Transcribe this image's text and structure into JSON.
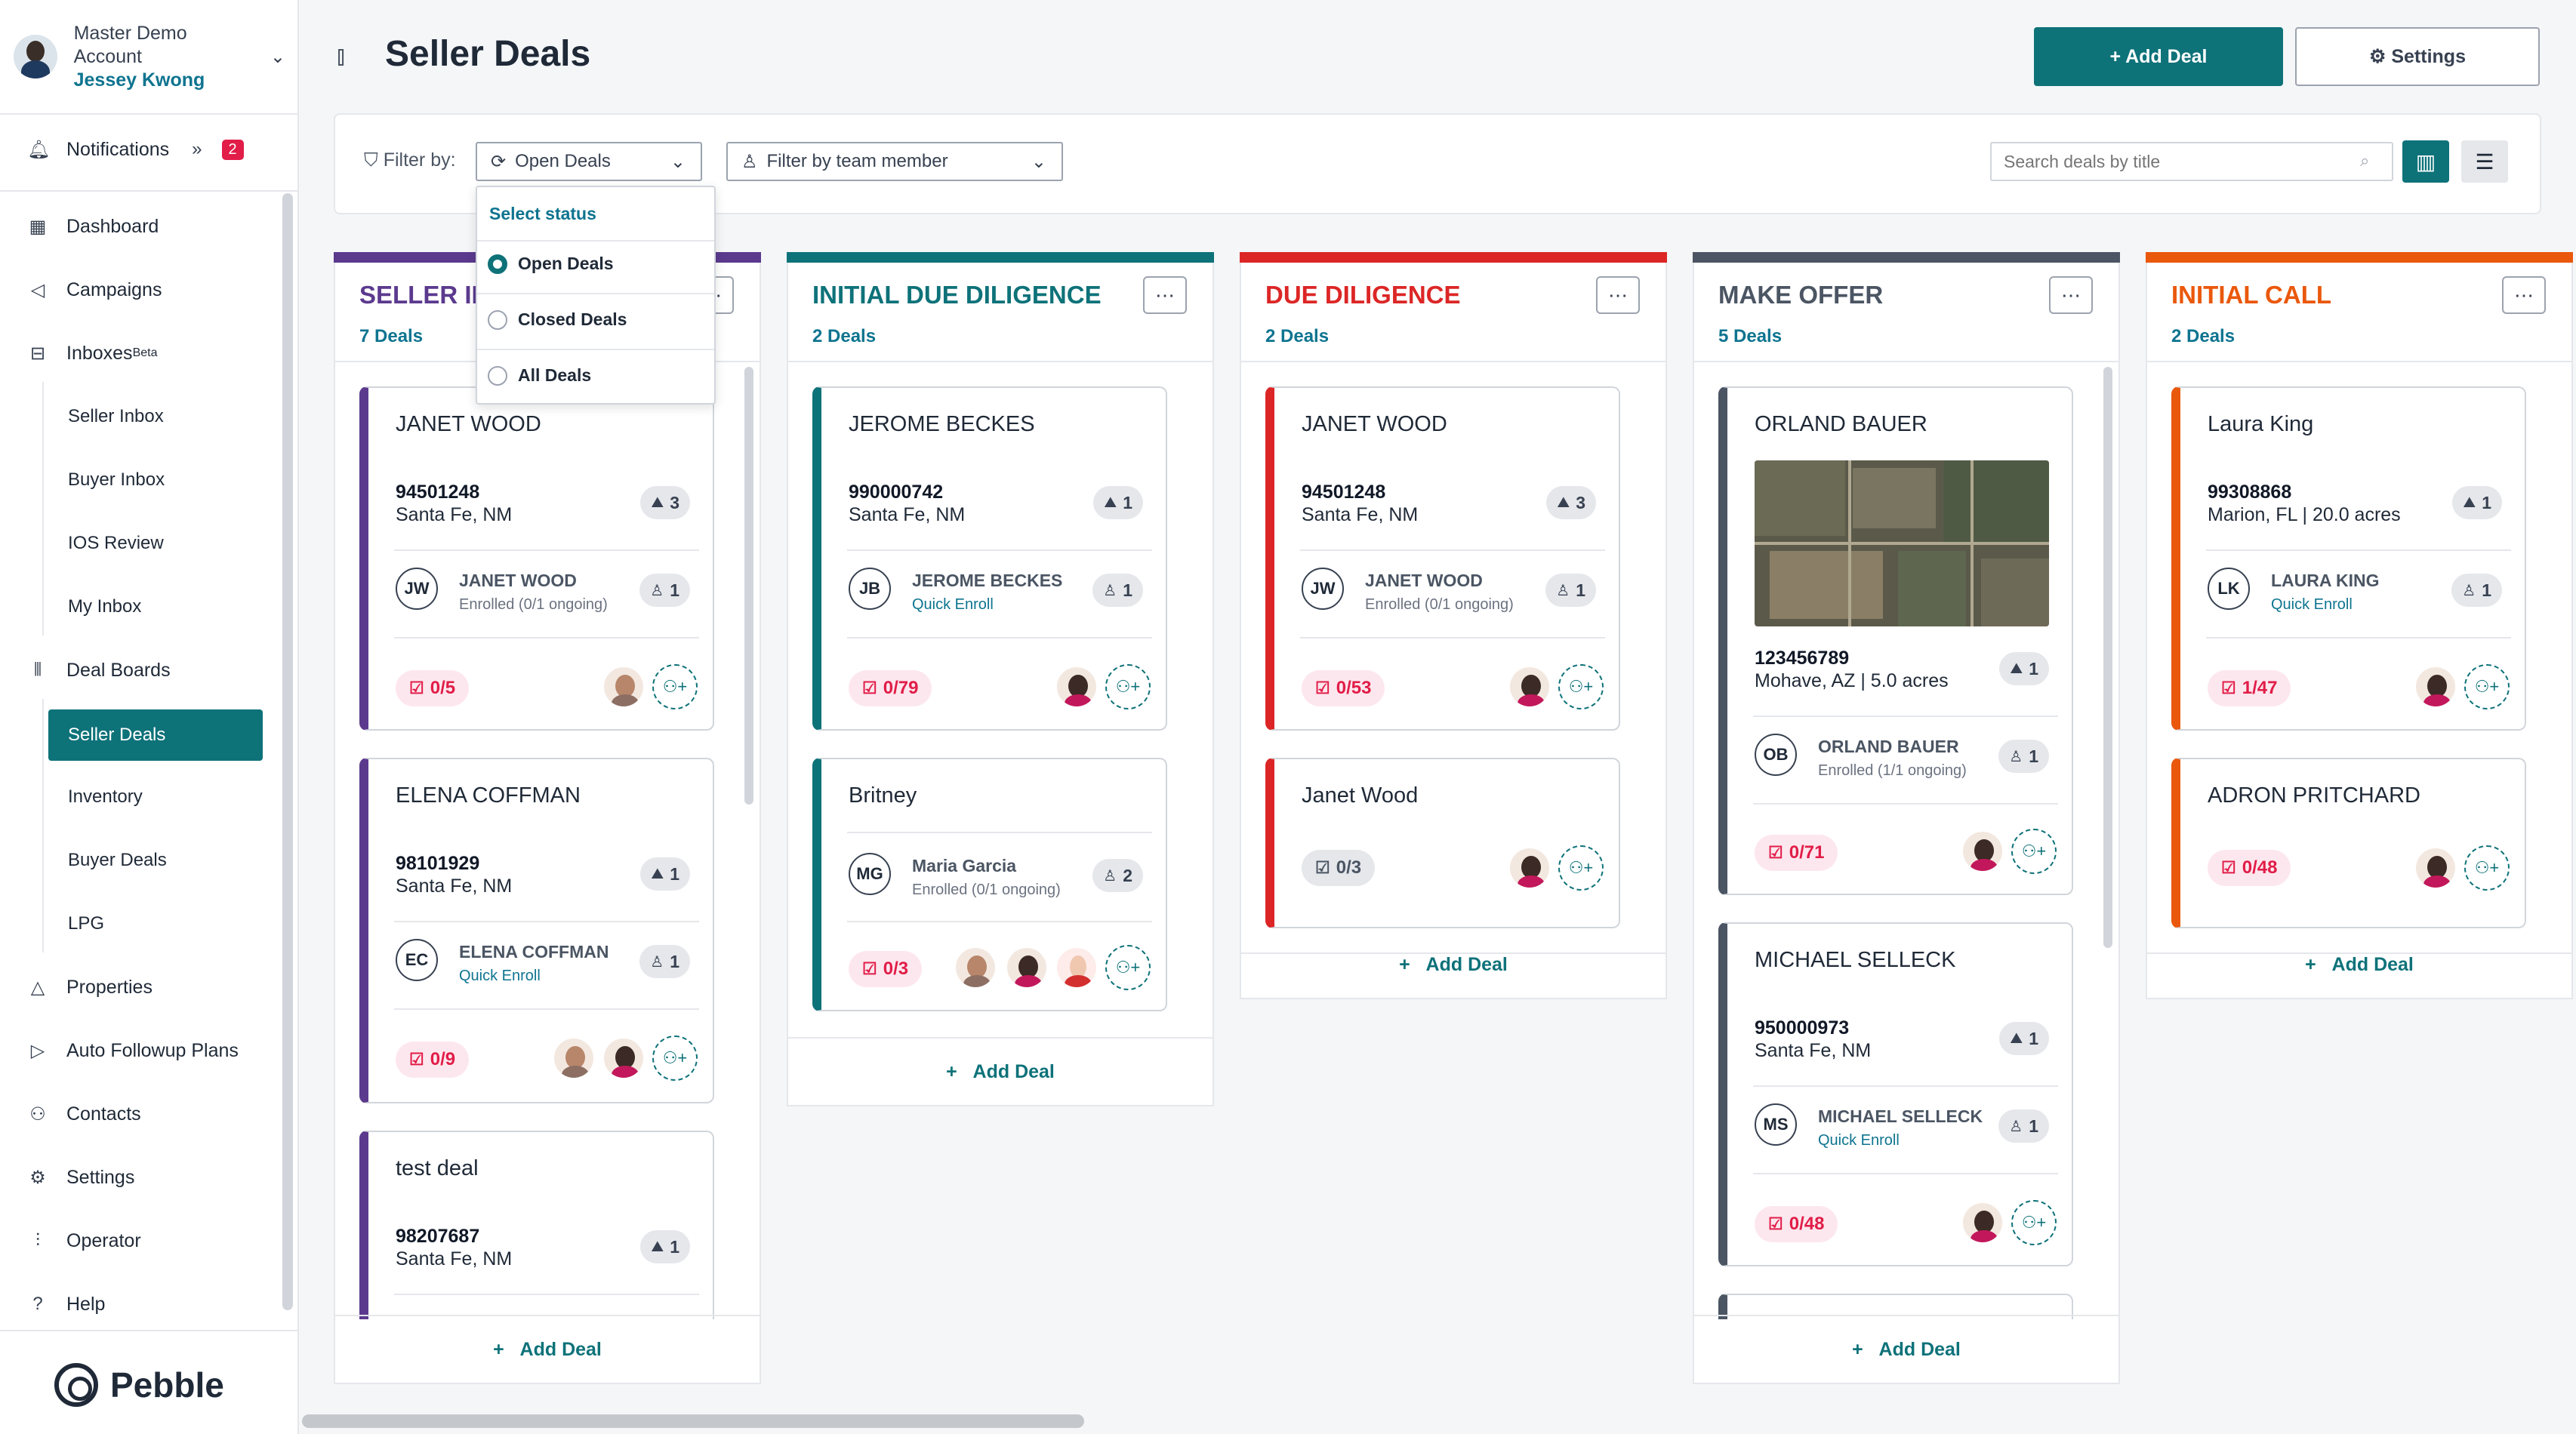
{
  "account": {
    "name": "Master Demo Account",
    "user": "Jessey Kwong"
  },
  "nav": {
    "notifications": {
      "label": "Notifications",
      "count": "2"
    },
    "items": [
      {
        "label": "Dashboard",
        "icon": "dashboard-icon"
      },
      {
        "label": "Campaigns",
        "icon": "megaphone-icon"
      },
      {
        "label": "Inboxes",
        "beta": "Beta",
        "icon": "inbox-icon"
      },
      {
        "label": "Deal Boards",
        "icon": "board-icon"
      },
      {
        "label": "Properties",
        "icon": "properties-icon"
      },
      {
        "label": "Auto Followup Plans",
        "icon": "play-icon"
      },
      {
        "label": "Contacts",
        "icon": "contacts-icon"
      },
      {
        "label": "Settings",
        "icon": "gear-icon"
      },
      {
        "label": "Operator",
        "icon": "sliders-icon"
      },
      {
        "label": "Help",
        "icon": "help-icon"
      }
    ],
    "inbox_sub": [
      "Seller Inbox",
      "Buyer Inbox",
      "IOS Review",
      "My Inbox"
    ],
    "board_sub": [
      "Seller Deals",
      "Inventory",
      "Buyer Deals",
      "LPG"
    ]
  },
  "brand": "Pebble",
  "header": {
    "title": "Seller Deals",
    "add_deal": "+ Add Deal",
    "settings": "⚙ Settings"
  },
  "filter": {
    "label": "Filter by:",
    "status_value": "Open Deals",
    "team_placeholder": "Filter by team member",
    "search_placeholder": "Search deals by title",
    "dropdown": {
      "header": "Select status",
      "options": [
        "Open Deals",
        "Closed Deals",
        "All Deals"
      ],
      "selected": "Open Deals"
    }
  },
  "add_deal_label": "Add Deal",
  "columns": [
    {
      "title": "SELLER IN",
      "count": "7 Deals",
      "color": "#5b3a8e",
      "cards": [
        {
          "title": "JANET WOOD",
          "parcel": "94501248",
          "location": "Santa Fe, NM",
          "parcels": "3",
          "owner": "JANET WOOD",
          "initials": "JW",
          "enroll": "Enrolled (0/1 ongoing)",
          "contacts": "1",
          "tasks": "0/5"
        },
        {
          "title": "ELENA COFFMAN",
          "parcel": "98101929",
          "location": "Santa Fe, NM",
          "parcels": "1",
          "owner": "ELENA COFFMAN",
          "initials": "EC",
          "enroll": "Quick Enroll",
          "contacts": "1",
          "tasks": "0/9"
        },
        {
          "title": "test deal",
          "parcel": "98207687",
          "location": "Santa Fe, NM",
          "parcels": "1"
        }
      ]
    },
    {
      "title": "INITIAL DUE DILIGENCE",
      "count": "2 Deals",
      "color": "#0e7279",
      "cards": [
        {
          "title": "JEROME BECKES",
          "parcel": "990000742",
          "location": "Santa Fe, NM",
          "parcels": "1",
          "owner": "JEROME BECKES",
          "initials": "JB",
          "enroll": "Quick Enroll",
          "contacts": "1",
          "tasks": "0/79"
        },
        {
          "title": "Britney",
          "owner": "Maria Garcia",
          "initials": "MG",
          "enroll": "Enrolled (0/1 ongoing)",
          "contacts": "2",
          "tasks": "0/3"
        }
      ]
    },
    {
      "title": "DUE DILIGENCE",
      "count": "2 Deals",
      "color": "#dc2626",
      "cards": [
        {
          "title": "JANET WOOD",
          "parcel": "94501248",
          "location": "Santa Fe, NM",
          "parcels": "3",
          "owner": "JANET WOOD",
          "initials": "JW",
          "enroll": "Enrolled (0/1 ongoing)",
          "contacts": "1",
          "tasks": "0/53"
        },
        {
          "title": "Janet Wood",
          "tasks": "0/3"
        }
      ]
    },
    {
      "title": "MAKE OFFER",
      "count": "5 Deals",
      "color": "#4b5563",
      "cards": [
        {
          "title": "ORLAND BAUER",
          "parcel": "123456789",
          "location": "Mohave, AZ | 5.0 acres",
          "parcels": "1",
          "owner": "ORLAND BAUER",
          "initials": "OB",
          "enroll": "Enrolled (1/1 ongoing)",
          "contacts": "1",
          "tasks": "0/71"
        },
        {
          "title": "MICHAEL SELLECK",
          "parcel": "950000973",
          "location": "Santa Fe, NM",
          "parcels": "1",
          "owner": "MICHAEL SELLECK",
          "initials": "MS",
          "enroll": "Quick Enroll",
          "contacts": "1",
          "tasks": "0/48"
        }
      ]
    },
    {
      "title": "INITIAL CALL",
      "count": "2 Deals",
      "color": "#ea580c",
      "cards": [
        {
          "title": "Laura King",
          "parcel": "99308868",
          "location": "Marion, FL | 20.0 acres",
          "parcels": "1",
          "owner": "LAURA KING",
          "initials": "LK",
          "enroll": "Quick Enroll",
          "contacts": "1",
          "tasks": "1/47"
        },
        {
          "title": "ADRON PRITCHARD",
          "tasks": "0/48"
        }
      ]
    }
  ]
}
